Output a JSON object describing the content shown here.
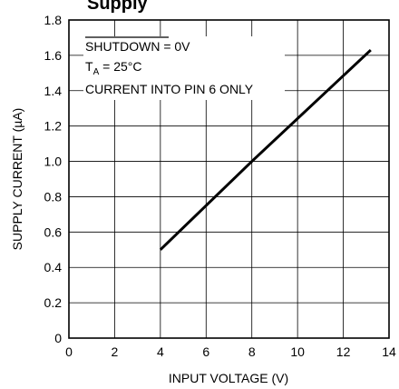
{
  "chart_data": {
    "type": "line",
    "title": "Supply",
    "xlabel": "INPUT VOLTAGE (V)",
    "ylabel": "SUPPLY CURRENT (µA)",
    "xlim": [
      0,
      14
    ],
    "ylim": [
      0,
      1.8
    ],
    "x_ticks": [
      0,
      2,
      4,
      6,
      8,
      10,
      12,
      14
    ],
    "y_ticks": [
      0,
      0.2,
      0.4,
      0.6,
      0.8,
      1.0,
      1.2,
      1.4,
      1.6,
      1.8
    ],
    "x_tick_labels": [
      "0",
      "2",
      "4",
      "6",
      "8",
      "10",
      "12",
      "14"
    ],
    "y_tick_labels": [
      "0",
      "0.2",
      "0.4",
      "0.6",
      "0.8",
      "1.0",
      "1.2",
      "1.4",
      "1.6",
      "1.8"
    ],
    "grid": true,
    "series": [
      {
        "x": [
          4.0,
          8.0,
          13.2
        ],
        "y": [
          0.5,
          1.0,
          1.63
        ],
        "color": "#000000"
      }
    ],
    "annotations": {
      "shutdown": "SHUTDOWN",
      "shutdown_value": " = 0V",
      "ta_base": "T",
      "ta_sub": "A",
      "ta_value": " = 25°C",
      "current_note": "CURRENT INTO PIN 6 ONLY"
    }
  }
}
